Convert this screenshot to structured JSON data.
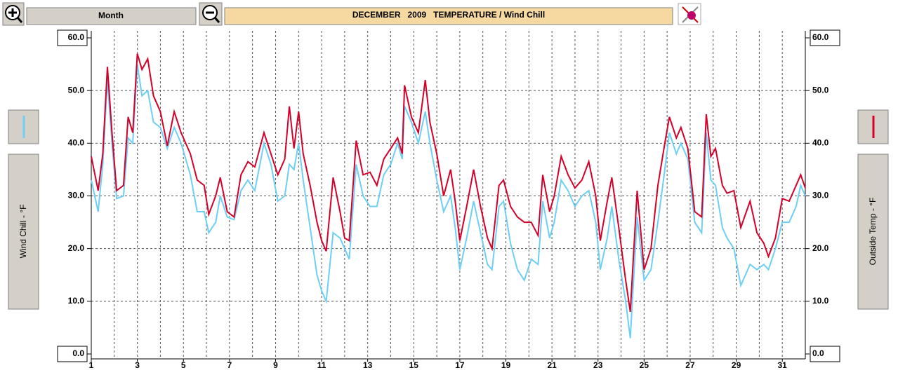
{
  "toolbar": {
    "period": "Month"
  },
  "chart_data": {
    "type": "line",
    "title": "DECEMBER   2009   TEMPERATURE / Wind Chill",
    "ylabel": "Wind Chill - °F",
    "y2label": "Outside Temp - °F",
    "x": [
      1,
      1.3,
      1.5,
      1.7,
      1.9,
      2.1,
      2.4,
      2.6,
      2.8,
      3.0,
      3.2,
      3.45,
      3.7,
      4.0,
      4.3,
      4.6,
      4.9,
      5.3,
      5.6,
      5.9,
      6.1,
      6.4,
      6.6,
      6.9,
      7.2,
      7.5,
      7.8,
      8.1,
      8.5,
      8.8,
      9.1,
      9.4,
      9.6,
      9.8,
      10.0,
      10.2,
      10.5,
      10.8,
      11.0,
      11.2,
      11.5,
      11.8,
      12.0,
      12.2,
      12.5,
      12.8,
      13.1,
      13.4,
      13.7,
      14.0,
      14.3,
      14.5,
      14.6,
      14.9,
      15.2,
      15.5,
      15.7,
      16.0,
      16.3,
      16.6,
      16.8,
      17.0,
      17.3,
      17.6,
      17.9,
      18.2,
      18.4,
      18.7,
      18.9,
      19.2,
      19.5,
      19.8,
      20.1,
      20.4,
      20.6,
      20.9,
      21.1,
      21.4,
      21.7,
      22.0,
      22.3,
      22.6,
      22.9,
      23.1,
      23.4,
      23.6,
      23.9,
      24.2,
      24.4,
      24.7,
      25.0,
      25.3,
      25.6,
      25.9,
      26.1,
      26.4,
      26.6,
      26.9,
      27.2,
      27.5,
      27.7,
      27.9,
      28.1,
      28.4,
      28.6,
      28.9,
      29.2,
      29.6,
      29.9,
      30.2,
      30.4,
      30.7,
      31.0,
      31.3,
      31.6,
      31.8,
      32.0
    ],
    "xlim": [
      1,
      32
    ],
    "xticks": [
      1,
      3,
      5,
      7,
      9,
      11,
      13,
      15,
      17,
      19,
      21,
      23,
      25,
      27,
      29,
      31
    ],
    "minor_xticks": [
      2,
      4,
      6,
      8,
      10,
      12,
      14,
      16,
      18,
      20,
      22,
      24,
      26,
      28,
      30,
      32
    ],
    "ylim": [
      0,
      60
    ],
    "yticks": [
      {
        "value": 0,
        "label": "0.0"
      },
      {
        "value": 10,
        "label": "10.0"
      },
      {
        "value": 20,
        "label": "20.0"
      },
      {
        "value": 30,
        "label": "30.0"
      },
      {
        "value": 40,
        "label": "40.0"
      },
      {
        "value": 50,
        "label": "50.0"
      },
      {
        "value": 60,
        "label": "60.0"
      }
    ],
    "y2lim": [
      0,
      60
    ],
    "y2ticks": [
      {
        "value": 0,
        "label": "0.0"
      },
      {
        "value": 10,
        "label": "10.0"
      },
      {
        "value": 20,
        "label": "20.0"
      },
      {
        "value": 30,
        "label": "30.0"
      },
      {
        "value": 40,
        "label": "40.0"
      },
      {
        "value": 50,
        "label": "50.0"
      },
      {
        "value": 60,
        "label": "60.0"
      }
    ],
    "grid": true,
    "series": [
      {
        "color": "#6ecff6",
        "axis": "y",
        "values": [
          33,
          27,
          36,
          52,
          40,
          29.5,
          30,
          41,
          40,
          55,
          49,
          50,
          44,
          43,
          39,
          43,
          40,
          34,
          27,
          27,
          23,
          25,
          30,
          26,
          25.5,
          31,
          33,
          31,
          40,
          36,
          29,
          30,
          36,
          35,
          40,
          33,
          24,
          15,
          12,
          10,
          23,
          22,
          20,
          18,
          36,
          30,
          28,
          28,
          34,
          36,
          40,
          37,
          47,
          44,
          40,
          46,
          40,
          33,
          27,
          30,
          24,
          16,
          22,
          29,
          23,
          17,
          16,
          28,
          29,
          21,
          16,
          14,
          18,
          17,
          29,
          22,
          25,
          33,
          31,
          28,
          30,
          31,
          25,
          16,
          22,
          28,
          18,
          10,
          3,
          26,
          14,
          16,
          25,
          35,
          42,
          38,
          40,
          37,
          25,
          23,
          42,
          33,
          32,
          24,
          22,
          20,
          13,
          17,
          16,
          17,
          16,
          20,
          25,
          25,
          28,
          32,
          30
        ]
      },
      {
        "color": "#d4002a",
        "axis": "y2",
        "values": [
          37.5,
          31,
          38,
          54.5,
          42,
          31,
          32,
          45,
          42,
          57,
          54,
          56,
          49,
          46,
          39.5,
          46,
          42,
          38,
          33,
          32,
          26.5,
          30,
          33.5,
          27,
          26,
          34,
          36.5,
          35.5,
          42,
          38,
          34,
          37,
          47,
          39,
          46,
          38,
          32,
          25,
          21.5,
          19.5,
          33.5,
          27,
          22,
          21.5,
          40.5,
          34,
          34.5,
          32,
          37,
          39,
          41,
          38,
          51,
          45,
          42,
          52,
          44,
          38,
          30,
          35,
          29,
          21.5,
          28,
          35,
          28,
          22,
          20,
          32,
          33,
          28,
          26,
          25,
          25,
          22.5,
          34,
          27,
          30,
          37.5,
          34,
          31.5,
          33,
          36.5,
          30,
          21.5,
          29,
          33.5,
          24,
          14,
          8,
          31,
          16,
          20,
          32,
          40,
          45,
          41,
          43,
          39,
          27,
          26,
          45.5,
          37.5,
          39,
          32,
          30.5,
          31,
          24,
          29,
          23,
          21,
          18.5,
          22,
          29.5,
          29,
          32,
          34,
          31.5
        ]
      }
    ]
  }
}
